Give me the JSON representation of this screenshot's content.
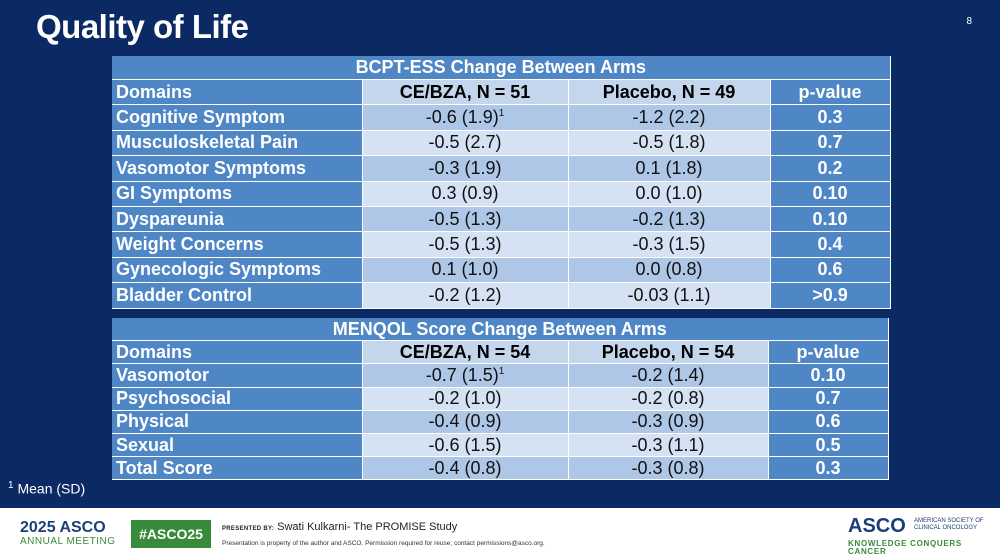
{
  "slide": {
    "title": "Quality of Life",
    "page_number": "8",
    "footnote": "Mean (SD)",
    "footnote_mark": "1"
  },
  "table1": {
    "title": "BCPT-ESS Change Between Arms",
    "headers": [
      "Domains",
      "CE/BZA, N = 51",
      "Placebo, N = 49",
      "p-value"
    ],
    "rows": [
      {
        "domain": "Cognitive Symptom",
        "ce": "-0.6 (1.9)",
        "ce_sup": "1",
        "placebo": "-1.2 (2.2)",
        "p": "0.3"
      },
      {
        "domain": "Musculoskeletal Pain",
        "ce": "-0.5 (2.7)",
        "ce_sup": "",
        "placebo": "-0.5 (1.8)",
        "p": "0.7"
      },
      {
        "domain": "Vasomotor Symptoms",
        "ce": "-0.3 (1.9)",
        "ce_sup": "",
        "placebo": "0.1 (1.8)",
        "p": "0.2"
      },
      {
        "domain": "GI Symptoms",
        "ce": "0.3 (0.9)",
        "ce_sup": "",
        "placebo": "0.0 (1.0)",
        "p": "0.10"
      },
      {
        "domain": "Dyspareunia",
        "ce": "-0.5 (1.3)",
        "ce_sup": "",
        "placebo": "-0.2 (1.3)",
        "p": "0.10"
      },
      {
        "domain": "Weight Concerns",
        "ce": "-0.5 (1.3)",
        "ce_sup": "",
        "placebo": "-0.3 (1.5)",
        "p": "0.4"
      },
      {
        "domain": "Gynecologic Symptoms",
        "ce": "0.1 (1.0)",
        "ce_sup": "",
        "placebo": "0.0 (0.8)",
        "p": "0.6"
      },
      {
        "domain": "Bladder Control",
        "ce": "-0.2 (1.2)",
        "ce_sup": "",
        "placebo": "-0.03 (1.1)",
        "p": ">0.9"
      }
    ]
  },
  "table2": {
    "title": "MENQOL Score Change Between Arms",
    "headers": [
      "Domains",
      "CE/BZA, N = 54",
      "Placebo, N = 54",
      "p-value"
    ],
    "rows": [
      {
        "domain": "Vasomotor",
        "ce": "-0.7 (1.5)",
        "ce_sup": "1",
        "placebo": "-0.2 (1.4)",
        "p": "0.10"
      },
      {
        "domain": "Psychosocial",
        "ce": "-0.2 (1.0)",
        "ce_sup": "",
        "placebo": "-0.2 (0.8)",
        "p": "0.7"
      },
      {
        "domain": "Physical",
        "ce": "-0.4 (0.9)",
        "ce_sup": "",
        "placebo": "-0.3 (0.9)",
        "p": "0.6"
      },
      {
        "domain": "Sexual",
        "ce": "-0.6 (1.5)",
        "ce_sup": "",
        "placebo": "-0.3 (1.1)",
        "p": "0.5"
      },
      {
        "domain": "Total Score",
        "ce": "-0.4 (0.8)",
        "ce_sup": "",
        "placebo": "-0.3 (0.8)",
        "p": "0.3"
      }
    ]
  },
  "footer": {
    "meeting_year": "2025",
    "meeting_org": "ASCO",
    "meeting_name": "ANNUAL MEETING",
    "hashtag": "#ASCO25",
    "presented_by_label": "PRESENTED BY:",
    "presenter": "Swati Kulkarni- The PROMISE Study",
    "disclaimer": "Presentation is property of the author and ASCO. Permission required for reuse; contact permissions@asco.org.",
    "logo": "ASCO",
    "society": "AMERICAN SOCIETY OF CLINICAL ONCOLOGY",
    "tagline": "KNOWLEDGE CONQUERS CANCER"
  },
  "colors": {
    "background": "#0b2a63",
    "header_blue": "#4f86c6",
    "band_dark": "#aec7e6",
    "band_light": "#d4e2f3",
    "asco_green": "#3a8a3c"
  }
}
